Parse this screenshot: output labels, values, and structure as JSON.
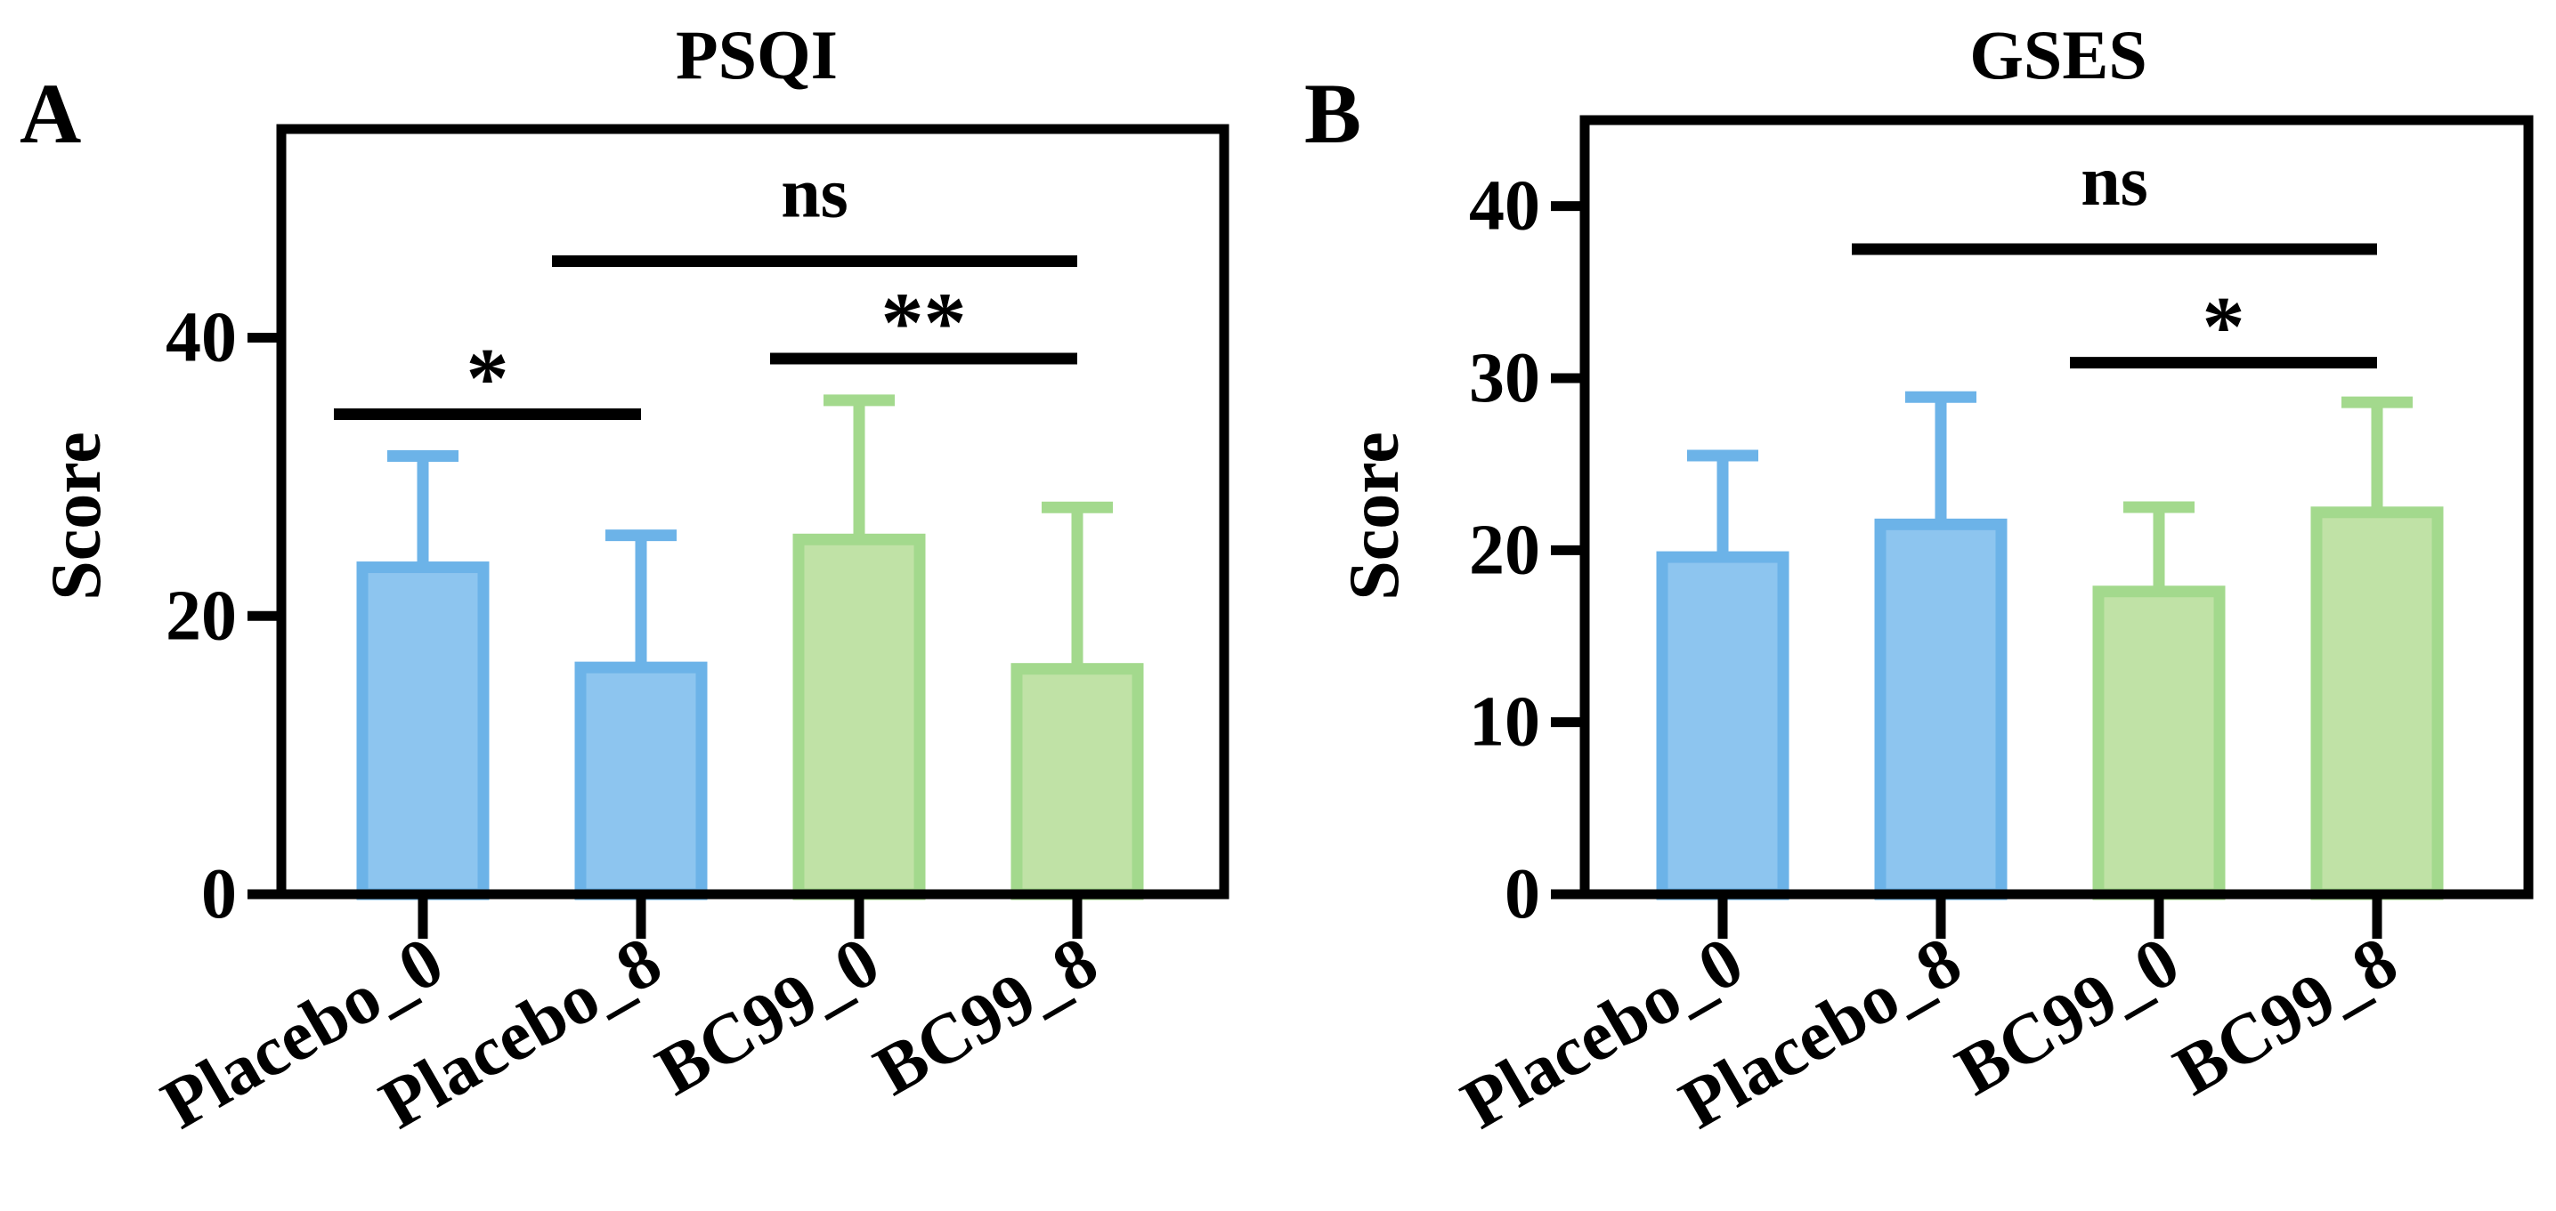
{
  "chart_data": [
    {
      "panel_label": "A",
      "type": "bar",
      "title": "PSQI",
      "ylabel": "Score",
      "xlabel": "",
      "categories": [
        "Placebo_0",
        "Placebo_8",
        "BC99_0",
        "BC99_8"
      ],
      "values": [
        23.5,
        16.3,
        25.5,
        16.2
      ],
      "error_upper": [
        31.5,
        25.8,
        35.5,
        27.8
      ],
      "ylim": [
        0,
        55
      ],
      "yticks": [
        0,
        20,
        40
      ],
      "colors": [
        "#6cb3e8",
        "#6cb3e8",
        "#a3d98d",
        "#a3d98d"
      ],
      "fill_colors": [
        "#8dc5ef",
        "#8dc5ef",
        "#c0e2a6",
        "#c0e2a6"
      ],
      "significance": [
        {
          "from": 0,
          "to": 1,
          "label": "*",
          "y": 34.5
        },
        {
          "from": 2,
          "to": 3,
          "label": "**",
          "y": 38.5
        },
        {
          "from": 1,
          "to": 3,
          "label": "ns",
          "y": 45.5
        }
      ],
      "grid": false
    },
    {
      "panel_label": "B",
      "type": "bar",
      "title": "GSES",
      "ylabel": "Score",
      "xlabel": "",
      "categories": [
        "Placebo_0",
        "Placebo_8",
        "BC99_0",
        "BC99_8"
      ],
      "values": [
        19.6,
        21.5,
        17.6,
        22.2
      ],
      "error_upper": [
        25.5,
        28.9,
        22.5,
        28.6
      ],
      "ylim": [
        0,
        45
      ],
      "yticks": [
        0,
        10,
        20,
        30,
        40
      ],
      "colors": [
        "#6cb3e8",
        "#6cb3e8",
        "#a3d98d",
        "#a3d98d"
      ],
      "fill_colors": [
        "#8dc5ef",
        "#8dc5ef",
        "#c0e2a6",
        "#c0e2a6"
      ],
      "significance": [
        {
          "from": 2,
          "to": 3,
          "label": "*",
          "y": 30.9
        },
        {
          "from": 1,
          "to": 3,
          "label": "ns",
          "y": 37.5
        }
      ],
      "grid": false
    }
  ]
}
